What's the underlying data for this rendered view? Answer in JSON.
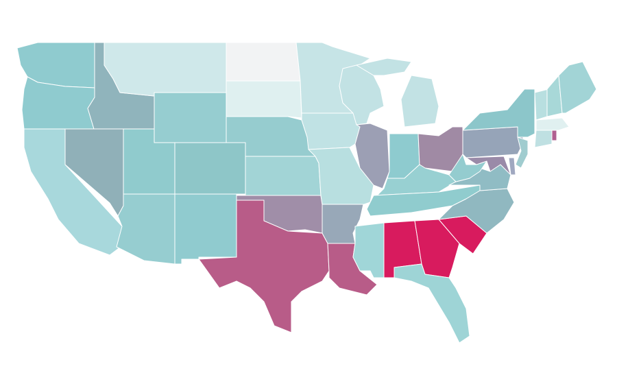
{
  "map": {
    "fills": [
      "#8fcbcf",
      "#8fcbcf",
      "#a8d8dc",
      "#90b0b8",
      "#90b4bc",
      "#cfe8ea",
      "#96cdd0",
      "#90cbcd",
      "#96cdd0",
      "#8ec6c8",
      "#90cbcf",
      "#f2f3f4",
      "#dff0f0",
      "#96cccf",
      "#a2d4d6",
      "#a08ea8",
      "#b85c88",
      "#c6e4e6",
      "#c0e2e4",
      "#b8dfe0",
      "#98a8b8",
      "#b85c88",
      "#c2e2e4",
      "#9c9fb4",
      "#c2e2e4",
      "#c2e2e4",
      "#8ecbcf",
      "#a08aa4",
      "#98d0d2",
      "#90ccce",
      "#a0d6d8",
      "#d81b5e",
      "#d81b5e",
      "#d81b5e",
      "#9ed4d6",
      "#90b8c0",
      "#90bcc4",
      "#94cccf",
      "#96a4b8",
      "#9a8aa8",
      "#a0a8c0",
      "#a0cccf",
      "#8cc6ca",
      "#b8dfe0",
      "#a8d8d8",
      "#a2d4d6",
      "#e0f0f0",
      "#bfe0e2",
      "#b06090"
    ]
  }
}
